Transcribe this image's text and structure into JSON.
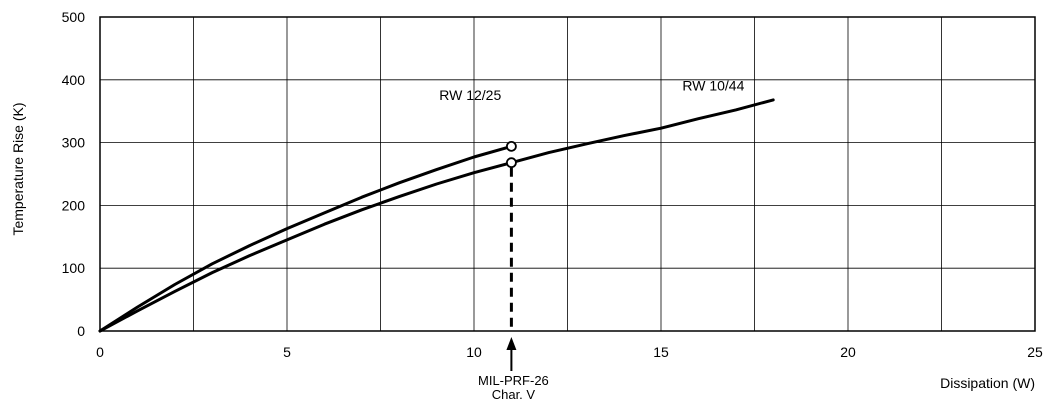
{
  "chart_data": {
    "type": "line",
    "title": "",
    "xlabel": "Dissipation (W)",
    "ylabel": "Temperature Rise (K)",
    "xlim": [
      0,
      25
    ],
    "ylim": [
      0,
      500
    ],
    "x_ticks": [
      0,
      5,
      10,
      15,
      20,
      25
    ],
    "y_ticks": [
      0,
      100,
      200,
      300,
      400,
      500
    ],
    "x_tick_labels": [
      "0",
      "5",
      "10",
      "15",
      "20",
      "25"
    ],
    "y_tick_labels": [
      "0",
      "100",
      "200",
      "300",
      "400",
      "500"
    ],
    "x_grid_step": 2.5,
    "grid": true,
    "legend": "none",
    "series": [
      {
        "name": "RW 12/25",
        "x": [
          0,
          1,
          2,
          3,
          4,
          5,
          6,
          7,
          8,
          9,
          10,
          11
        ],
        "y": [
          0,
          38,
          74,
          107,
          136,
          163,
          188,
          213,
          236,
          257,
          277,
          294
        ],
        "end_marker": true
      },
      {
        "name": "RW 10/44",
        "x": [
          0,
          1,
          2,
          3,
          4,
          5,
          6,
          7,
          8,
          9,
          10,
          11,
          12,
          13,
          14,
          15,
          16,
          17,
          18
        ],
        "y": [
          0,
          32,
          63,
          93,
          120,
          145,
          170,
          193,
          214,
          234,
          252,
          268,
          284,
          298,
          311,
          323,
          338,
          352,
          368
        ],
        "end_marker_x": 11
      }
    ],
    "annotations": [
      {
        "x": 11,
        "line1": "MIL-PRF-26",
        "line2": "Char. V",
        "style": "dashed-vertical-with-arrow"
      }
    ],
    "colors": {
      "line": "#000000",
      "grid": "#000000",
      "background": "#ffffff"
    }
  }
}
